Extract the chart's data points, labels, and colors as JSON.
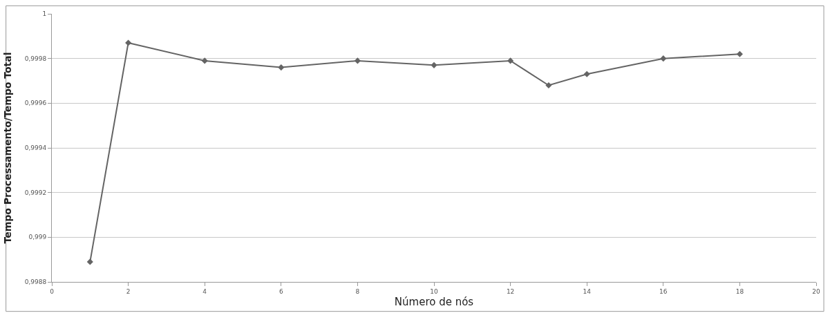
{
  "chart_data": {
    "type": "line",
    "xlabel": "Número de nós",
    "ylabel": "Tempo Processamento/Tempo Total",
    "x": [
      1,
      2,
      4,
      6,
      8,
      10,
      12,
      13,
      14,
      16,
      18
    ],
    "series": [
      {
        "color": "#646464",
        "values": [
          0.99889,
          0.99987,
          0.99979,
          0.99976,
          0.99979,
          0.99977,
          0.99979,
          0.99968,
          0.99973,
          0.9998,
          0.99982
        ]
      }
    ],
    "xlim": [
      0,
      20
    ],
    "xticks": [
      0,
      2,
      4,
      6,
      8,
      10,
      12,
      14,
      16,
      18,
      20
    ],
    "ylim": [
      0.9988,
      1
    ],
    "yticks": [
      {
        "value": 0.9988,
        "label": "0,9988"
      },
      {
        "value": 0.999,
        "label": "0,999"
      },
      {
        "value": 0.9992,
        "label": "0,9992"
      },
      {
        "value": 0.9994,
        "label": "0,9994"
      },
      {
        "value": 0.9996,
        "label": "0,9996"
      },
      {
        "value": 0.9998,
        "label": "0,9998"
      },
      {
        "value": 1,
        "label": "1"
      }
    ],
    "grid": "y",
    "marker": "diamond",
    "line_style": "solid"
  }
}
